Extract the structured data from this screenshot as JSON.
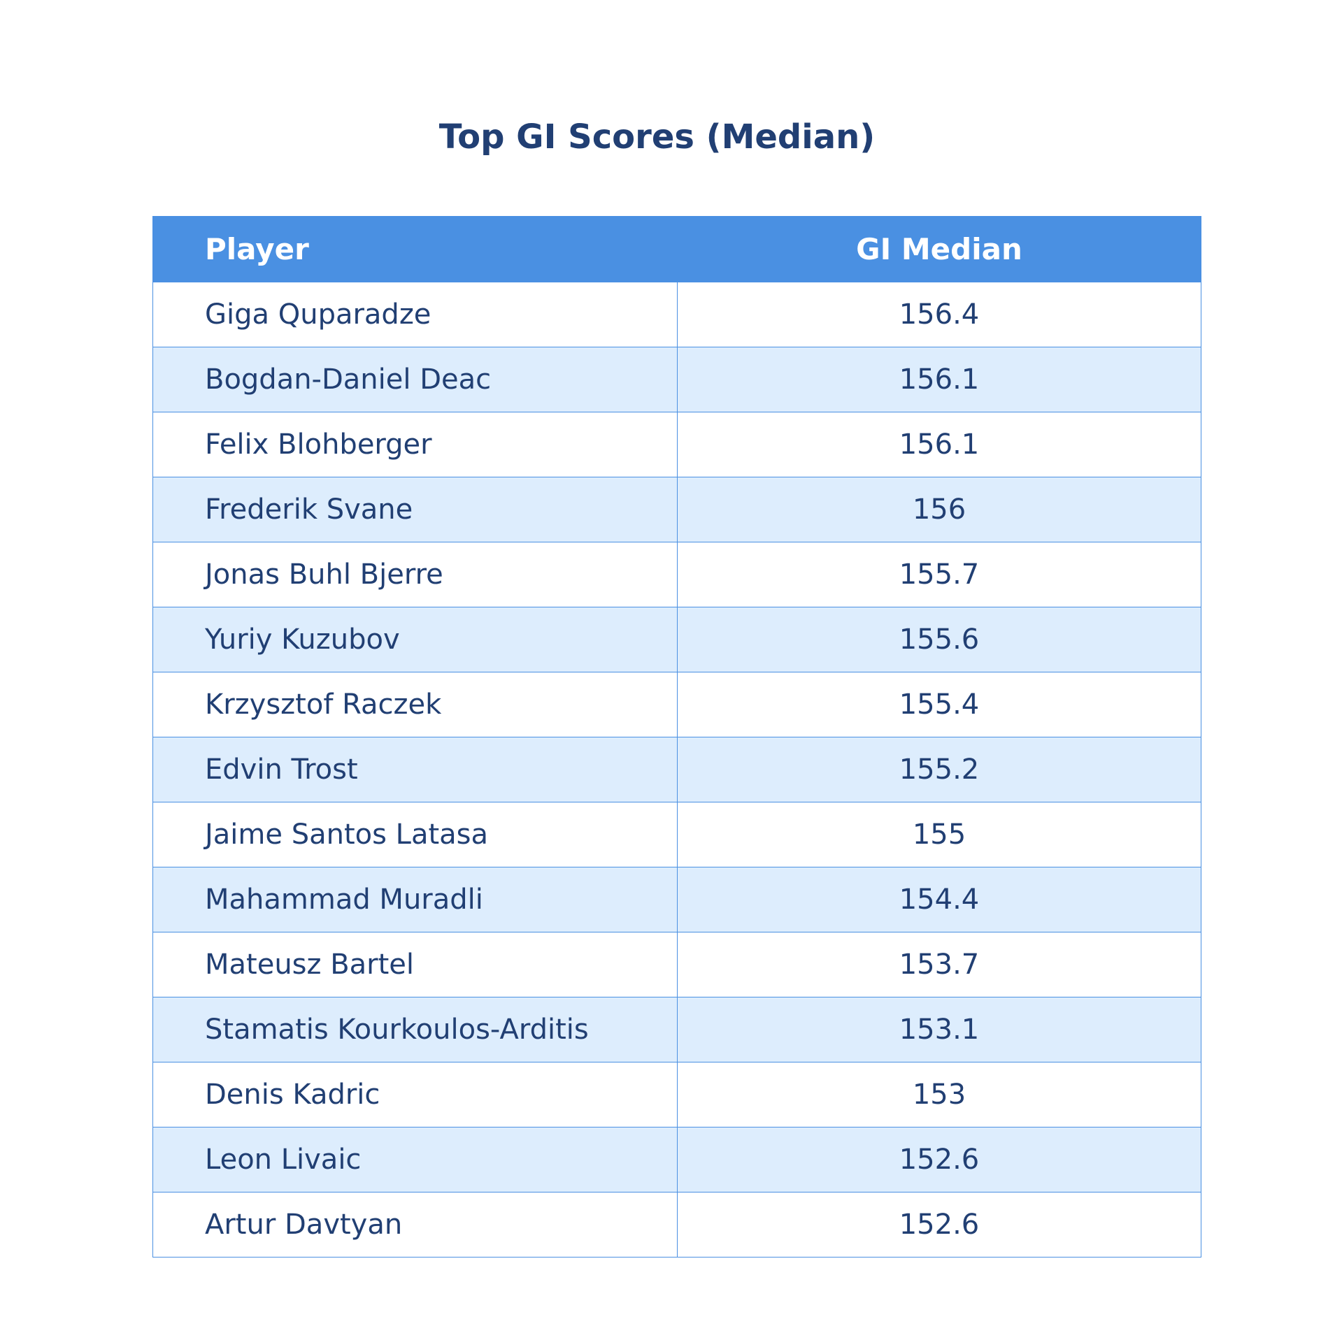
{
  "chart_data": {
    "type": "table",
    "title": "Top GI Scores (Median)",
    "columns": [
      "Player",
      "GI Median"
    ],
    "rows": [
      [
        "Giga Quparadze",
        "156.4"
      ],
      [
        "Bogdan-Daniel Deac",
        "156.1"
      ],
      [
        "Felix Blohberger",
        "156.1"
      ],
      [
        "Frederik Svane",
        "156"
      ],
      [
        "Jonas Buhl Bjerre",
        "155.7"
      ],
      [
        "Yuriy Kuzubov",
        "155.6"
      ],
      [
        "Krzysztof Raczek",
        "155.4"
      ],
      [
        "Edvin Trost",
        "155.2"
      ],
      [
        "Jaime Santos Latasa",
        "155"
      ],
      [
        "Mahammad Muradli",
        "154.4"
      ],
      [
        "Mateusz Bartel",
        "153.7"
      ],
      [
        "Stamatis Kourkoulos-Arditis",
        "153.1"
      ],
      [
        "Denis Kadric",
        "153"
      ],
      [
        "Leon Livaic",
        "152.6"
      ],
      [
        "Artur Davtyan",
        "152.6"
      ]
    ],
    "colors": {
      "header_bg": "#4a90e2",
      "header_text": "#ffffff",
      "row_alt_bg": "#ddedfd",
      "text": "#213f73",
      "border": "#4a90e2"
    }
  }
}
